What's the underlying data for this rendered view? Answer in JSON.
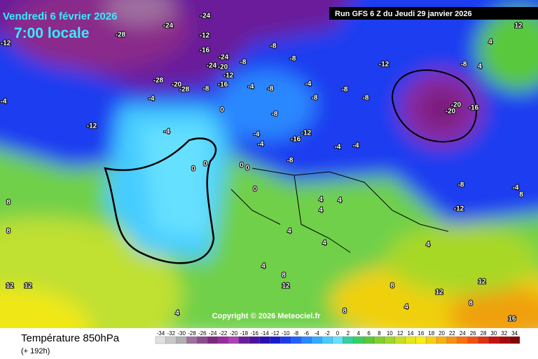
{
  "header": {
    "date": "Vendredi 6 février 2026",
    "time": "7:00 locale",
    "run": "Run GFS 6 Z du Jeudi 29 janvier 2026"
  },
  "copyright": "Copyright © 2026 Meteociel.fr",
  "footer": {
    "title": "Température 850hPa",
    "lead": "(+ 192h)"
  },
  "legend": {
    "labels": [
      -34,
      -32,
      -30,
      -28,
      -26,
      -24,
      -22,
      -20,
      -18,
      -16,
      -14,
      -12,
      -10,
      -8,
      -6,
      -4,
      -2,
      0,
      2,
      4,
      6,
      8,
      10,
      12,
      14,
      16,
      18,
      20,
      22,
      24,
      26,
      28,
      30,
      32,
      34
    ],
    "colors": [
      "#e0e0e0",
      "#c8c8c8",
      "#b0b0b0",
      "#a070a0",
      "#8c4c8c",
      "#7a2a7a",
      "#9a2aa0",
      "#b040b8",
      "#6a1e9a",
      "#4a14a0",
      "#2a10b0",
      "#1a1ad0",
      "#1a3cf0",
      "#2060ff",
      "#2a88ff",
      "#33aaff",
      "#44ccff",
      "#66e0ff",
      "#33d0a0",
      "#3ad060",
      "#5ac83c",
      "#80d030",
      "#a0d828",
      "#c8e020",
      "#e8e818",
      "#f8f010",
      "#f8d010",
      "#f8b010",
      "#f89010",
      "#f87010",
      "#f05010",
      "#e03010",
      "#c81010",
      "#a80a0a",
      "#800808"
    ]
  },
  "map_labels": [
    -24,
    -28,
    -24,
    -12,
    -16,
    -24,
    -24,
    -20,
    -12,
    -8,
    -8,
    -8,
    -12,
    -8,
    -20,
    -20,
    -16,
    -28,
    -20,
    -28,
    -8,
    -16,
    -4,
    -8,
    -4,
    -8,
    -8,
    -8,
    -4,
    -12,
    -4,
    0,
    -8,
    -12,
    -16,
    -4,
    -4,
    -8,
    0,
    0,
    0,
    0,
    0,
    -4,
    -4,
    4,
    4,
    4,
    4,
    4,
    4,
    8,
    12,
    12,
    12,
    8,
    8,
    4,
    8,
    12,
    16,
    12,
    8,
    4,
    8,
    4,
    12,
    -12,
    -4,
    -8,
    -12,
    -4,
    8,
    4,
    4
  ]
}
